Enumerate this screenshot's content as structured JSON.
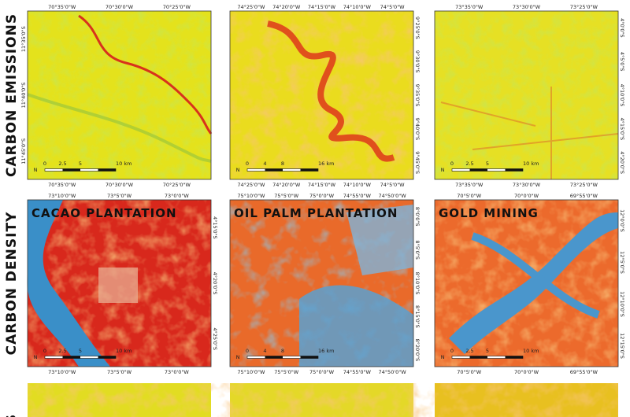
{
  "north_label": "N",
  "rows": [
    {
      "label": "CARBON EMISSIONS"
    },
    {
      "label": "CARBON DENSITY"
    },
    {
      "label": "NS"
    }
  ],
  "panels": [
    {
      "top": [
        "70°35'0\"W",
        "70°30'0\"W",
        "70°25'0\"W"
      ],
      "bottom": [
        "70°35'0\"W",
        "70°30'0\"W",
        "70°25'0\"W"
      ],
      "side": [
        "11°35'0\"S",
        "11°40'0\"S",
        "11°45'0\"S"
      ],
      "scale": [
        "0",
        "2.5",
        "5",
        "10 km"
      ]
    },
    {
      "top": [
        "74°25'0\"W",
        "74°20'0\"W",
        "74°15'0\"W",
        "74°10'0\"W",
        "74°5'0\"W"
      ],
      "bottom": [
        "74°25'0\"W",
        "74°20'0\"W",
        "74°15'0\"W",
        "74°10'0\"W",
        "74°5'0\"W"
      ],
      "side": [
        "9°25'0\"S",
        "9°30'0\"S",
        "9°35'0\"S",
        "9°40'0\"S",
        "9°45'0\"S"
      ],
      "scale": [
        "0",
        "4",
        "8",
        "16 km"
      ]
    },
    {
      "top": [
        "73°35'0\"W",
        "73°30'0\"W",
        "73°25'0\"W"
      ],
      "bottom": [
        "73°35'0\"W",
        "73°30'0\"W",
        "73°25'0\"W"
      ],
      "side": [
        "4°0'0\"S",
        "4°5'0\"S",
        "4°10'0\"S",
        "4°15'0\"S",
        "4°20'0\"S"
      ],
      "scale": [
        "0",
        "2.5",
        "5",
        "10 km"
      ]
    },
    {
      "title": "CACAO PLANTATION",
      "top": [
        "73°10'0\"W",
        "73°5'0\"W",
        "73°0'0\"W"
      ],
      "bottom": [
        "73°10'0\"W",
        "73°5'0\"W",
        "73°0'0\"W"
      ],
      "side": [
        "4°15'0\"S",
        "4°20'0\"S",
        "4°25'0\"S"
      ],
      "scale": [
        "0",
        "2.5",
        "5",
        "10 km"
      ]
    },
    {
      "title": "OIL PALM PLANTATION",
      "top": [
        "75°10'0\"W",
        "75°5'0\"W",
        "75°0'0\"W",
        "74°55'0\"W",
        "74°50'0\"W"
      ],
      "bottom": [
        "75°10'0\"W",
        "75°5'0\"W",
        "75°0'0\"W",
        "74°55'0\"W",
        "74°50'0\"W"
      ],
      "side": [
        "8°0'0\"S",
        "8°5'0\"S",
        "8°10'0\"S",
        "8°15'0\"S",
        "8°20'0\"S"
      ],
      "scale": [
        "0",
        "4",
        "8",
        "16 km"
      ]
    },
    {
      "title": "GOLD MINING",
      "top": [
        "70°5'0\"W",
        "70°0'0\"W",
        "69°55'0\"W"
      ],
      "bottom": [
        "70°5'0\"W",
        "70°0'0\"W",
        "69°55'0\"W"
      ],
      "side": [
        "12°0'0\"S",
        "12°5'0\"S",
        "12°10'0\"S",
        "12°15'0\"S"
      ],
      "scale": [
        "0",
        "2.5",
        "5",
        "10 km"
      ]
    }
  ]
}
